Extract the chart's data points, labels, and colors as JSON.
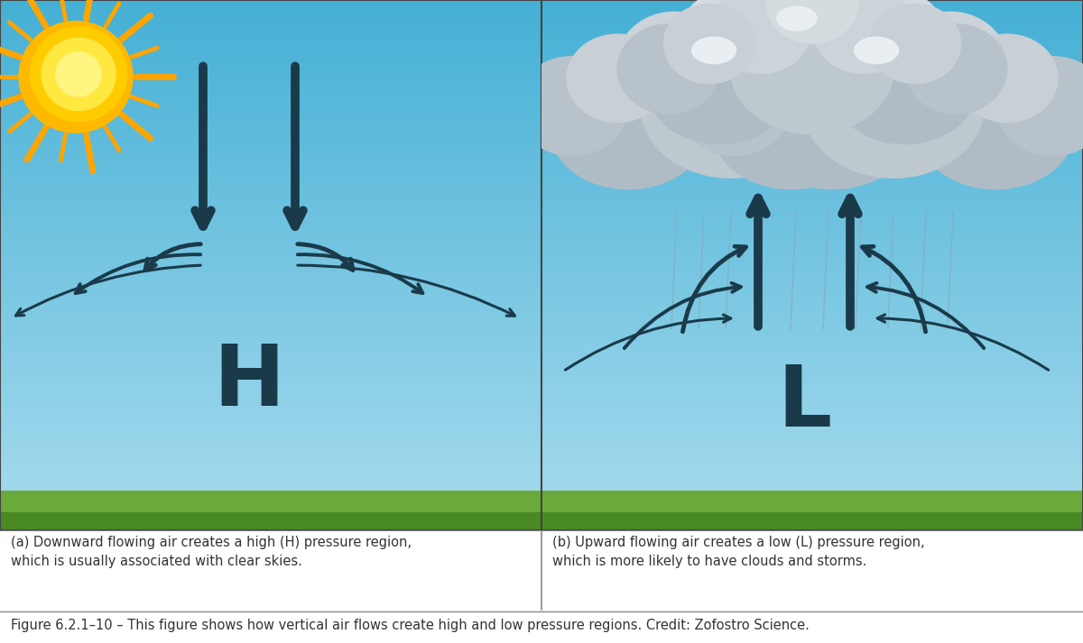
{
  "fig_width": 12.0,
  "fig_height": 7.13,
  "dpi": 100,
  "sky_top_color": "#45b0d5",
  "sky_bottom_color": "#a8dcee",
  "grass_color": "#6aaa3a",
  "grass_dark_color": "#4a8a25",
  "arrow_color": "#1a3a4a",
  "border_color": "#444444",
  "text_color": "#333333",
  "caption_a": "(a) Downward flowing air creates a high (H) pressure region,\nwhich is usually associated with clear skies.",
  "caption_b": "(b) Upward flowing air creates a low (L) pressure region,\nwhich is more likely to have clouds and storms.",
  "figure_caption": "Figure 6.2.1–10 – This figure shows how vertical air flows create high and low pressure regions. Credit: Zofostro Science.",
  "H_label": "H",
  "L_label": "L",
  "divider_color": "#888888",
  "rain_color": "#88aabc"
}
